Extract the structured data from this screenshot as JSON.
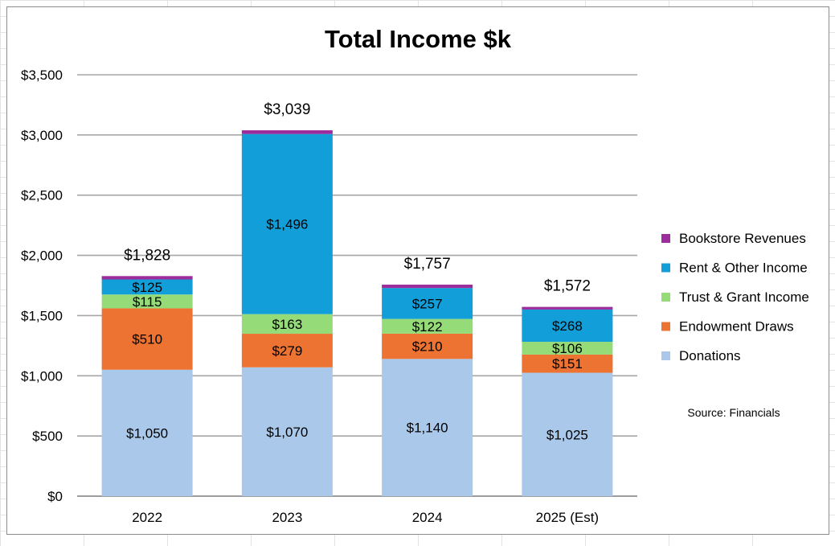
{
  "chart_data": {
    "type": "bar",
    "stacked": true,
    "title": "Total Income $k",
    "categories": [
      "2022",
      "2023",
      "2024",
      "2025 (Est)"
    ],
    "series": [
      {
        "name": "Donations",
        "color": "#a9c8ea",
        "values": [
          1050,
          1070,
          1140,
          1025
        ],
        "labels": [
          "$1,050",
          "$1,070",
          "$1,140",
          "$1,025"
        ]
      },
      {
        "name": "Endowment Draws",
        "color": "#ec7332",
        "values": [
          510,
          279,
          210,
          151
        ],
        "labels": [
          "$510",
          "$279",
          "$210",
          "$151"
        ]
      },
      {
        "name": "Trust & Grant Income",
        "color": "#95dc78",
        "values": [
          115,
          163,
          122,
          106
        ],
        "labels": [
          "$115",
          "$163",
          "$122",
          "$106"
        ]
      },
      {
        "name": "Rent & Other Income",
        "color": "#129ed8",
        "values": [
          125,
          1496,
          257,
          268
        ],
        "labels": [
          "$125",
          "$1,496",
          "$257",
          "$268"
        ]
      },
      {
        "name": "Bookstore Revenues",
        "color": "#9b2d9c",
        "values": [
          28,
          31,
          28,
          22
        ],
        "labels": [
          "",
          "",
          "",
          ""
        ]
      }
    ],
    "totals": [
      "$1,828",
      "$3,039",
      "$1,757",
      "$1,572"
    ],
    "total_values": [
      1828,
      3039,
      1757,
      1572
    ],
    "y_ticks": [
      "$0",
      "$500",
      "$1,000",
      "$1,500",
      "$2,000",
      "$2,500",
      "$3,000",
      "$3,500"
    ],
    "ylim": [
      0,
      3500
    ],
    "grid": true,
    "legend_position": "right",
    "annotation": "Source: Financials"
  }
}
